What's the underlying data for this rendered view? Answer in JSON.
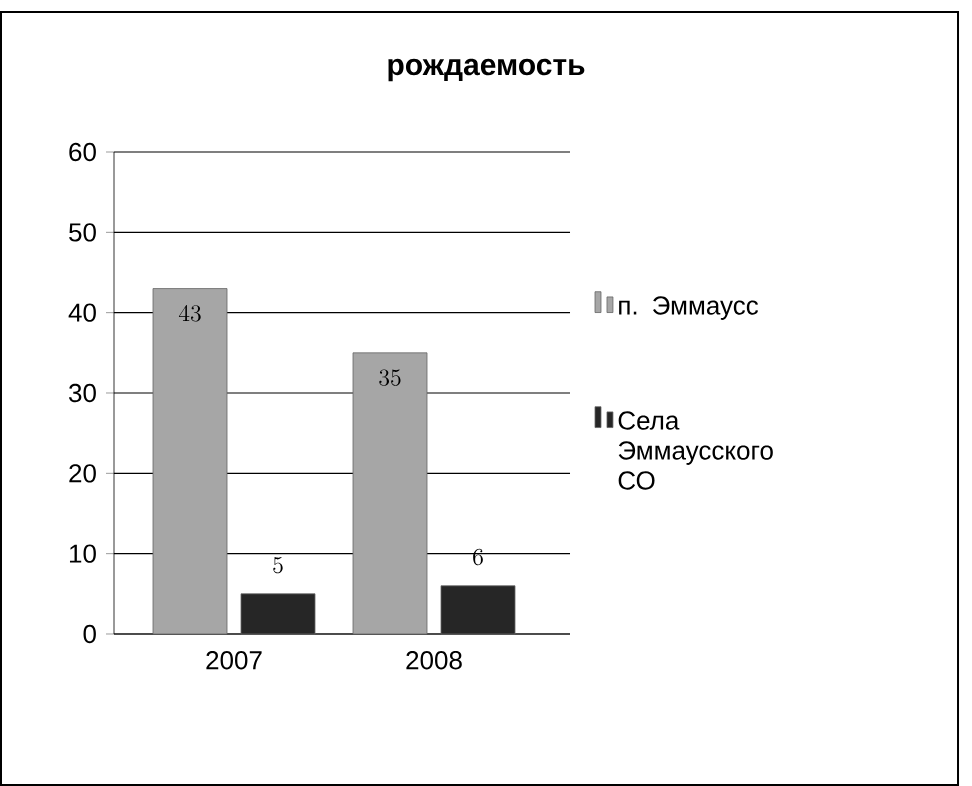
{
  "chart_data": {
    "type": "bar",
    "title": "рождаемость",
    "categories": [
      "2007",
      "2008"
    ],
    "series": [
      {
        "name": "п. Эммаусс",
        "color": "#a6a6a6",
        "values": [
          43,
          35
        ]
      },
      {
        "name": "Села Эммаусского СО",
        "color": "#262626",
        "values": [
          5,
          6
        ]
      }
    ],
    "ylim": [
      0,
      60
    ],
    "yticks": [
      0,
      10,
      20,
      30,
      40,
      50,
      60
    ],
    "grid": "y",
    "legend": "right",
    "data_labels": true
  }
}
